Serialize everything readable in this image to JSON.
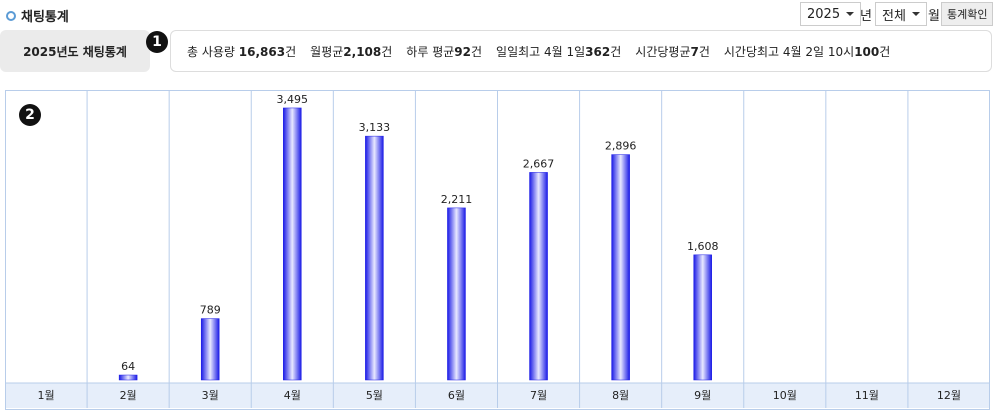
{
  "header": {
    "title": "채팅통계",
    "year": "2025",
    "year_unit": "년",
    "month": "전체",
    "month_unit": "월",
    "button": "통계확인"
  },
  "summary": {
    "label": "2025년도 채팅통계",
    "badge": "1",
    "items": [
      {
        "text": "총 사용량 ",
        "value": "16,863",
        "unit": "건"
      },
      {
        "text": "월평균",
        "value": "2,108",
        "unit": "건"
      },
      {
        "text": "하루 평균",
        "value": "92",
        "unit": "건"
      },
      {
        "text": "일일최고 4월 1일",
        "value": "362",
        "unit": "건"
      },
      {
        "text": "시간당평균",
        "value": "7",
        "unit": "건"
      },
      {
        "text": "시간당최고 4월 2일 10시",
        "value": "100",
        "unit": "건"
      }
    ]
  },
  "chart_badge": "2",
  "chart_data": {
    "type": "bar",
    "categories": [
      "1월",
      "2월",
      "3월",
      "4월",
      "5월",
      "6월",
      "7월",
      "8월",
      "9월",
      "10월",
      "11월",
      "12월"
    ],
    "values": [
      null,
      64,
      789,
      3495,
      3133,
      2211,
      2667,
      2896,
      1608,
      null,
      null,
      null
    ],
    "value_labels": [
      null,
      "64",
      "789",
      "3,495",
      "3,133",
      "2,211",
      "2,667",
      "2,896",
      "1,608",
      null,
      null,
      null
    ],
    "color": "#1a1ae6",
    "ylim": [
      0,
      3700
    ]
  }
}
